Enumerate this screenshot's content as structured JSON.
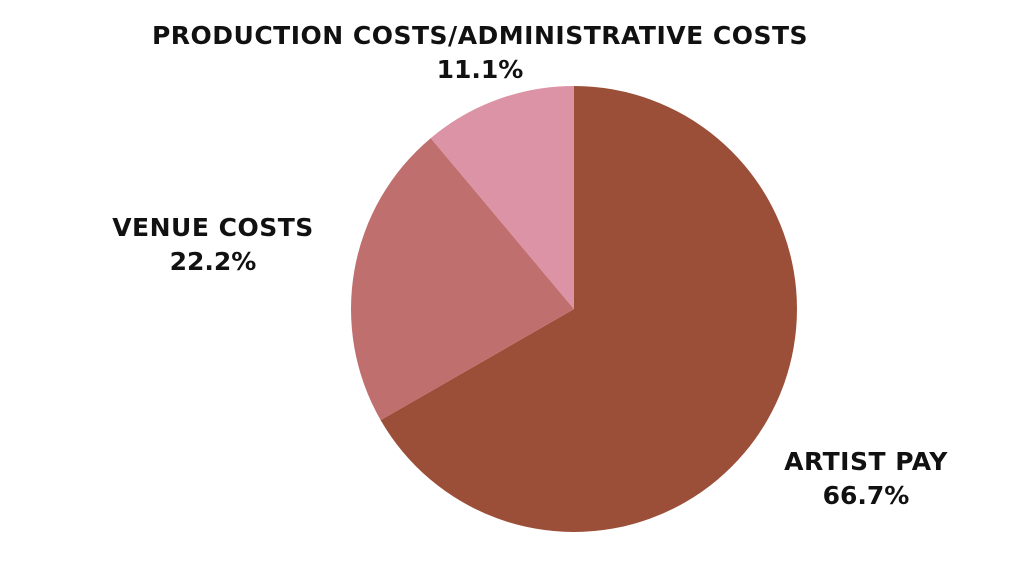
{
  "chart_data": {
    "type": "pie",
    "slices": [
      {
        "label": "ARTIST PAY",
        "value": 66.7,
        "value_label": "66.7%",
        "color": "#9c4f38"
      },
      {
        "label": "VENUE COSTS",
        "value": 22.2,
        "value_label": "22.2%",
        "color": "#c06f6f"
      },
      {
        "label": "PRODUCTION COSTS/ADMINISTRATIVE COSTS",
        "value": 11.1,
        "value_label": "11.1%",
        "color": "#db93a5"
      }
    ],
    "start_angle": "12 o'clock",
    "direction": "clockwise",
    "legend": "none",
    "labels": "outside slices"
  }
}
